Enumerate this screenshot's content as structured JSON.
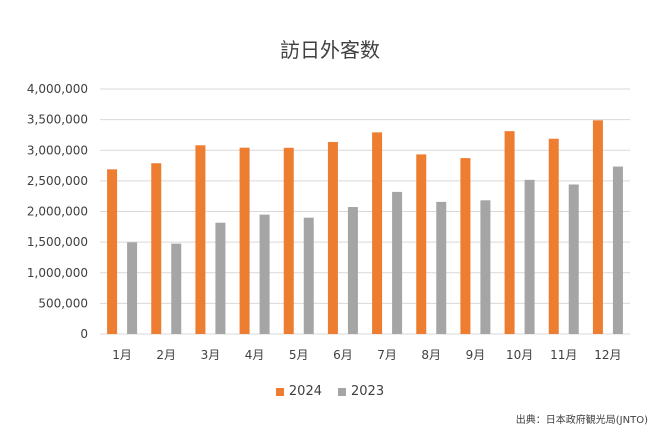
{
  "chart_data": {
    "type": "bar",
    "title": "訪日外客数",
    "categories": [
      "1月",
      "2月",
      "3月",
      "4月",
      "5月",
      "6月",
      "7月",
      "8月",
      "9月",
      "10月",
      "11月",
      "12月"
    ],
    "series": [
      {
        "name": "2024",
        "color": "#ED7D31",
        "values": [
          2688000,
          2788000,
          3081000,
          3042000,
          3040000,
          3135000,
          3292000,
          2932000,
          2872000,
          3312000,
          3188000,
          3489000
        ]
      },
      {
        "name": "2023",
        "color": "#A5A5A5",
        "values": [
          1497000,
          1476000,
          1817000,
          1949000,
          1899000,
          2073000,
          2320000,
          2157000,
          2183000,
          2517000,
          2441000,
          2734000
        ]
      }
    ],
    "ylim": [
      0,
      4000000
    ],
    "yticks": [
      0,
      500000,
      1000000,
      1500000,
      2000000,
      2500000,
      3000000,
      3500000,
      4000000
    ],
    "ytick_labels": [
      "0",
      "500,000",
      "1,000,000",
      "1,500,000",
      "2,000,000",
      "2,500,000",
      "3,000,000",
      "3,500,000",
      "4,000,000"
    ],
    "xlabel": "",
    "ylabel": "",
    "grid": true,
    "legend_position": "bottom"
  },
  "source_note": "出典：日本政府観光局(JNTO)"
}
